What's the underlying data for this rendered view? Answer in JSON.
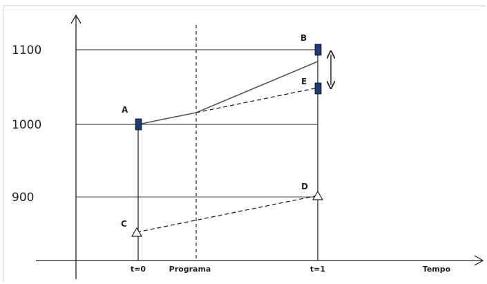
{
  "chart_data": {
    "type": "diagram",
    "y_ticks": [
      "1100",
      "1000",
      "900"
    ],
    "x_ticks": [
      "t=0",
      "Programa",
      "t=1"
    ],
    "x_axis_label": "Tempo",
    "points": [
      {
        "label": "A",
        "marker": "square"
      },
      {
        "label": "B",
        "marker": "square"
      },
      {
        "label": "E",
        "marker": "square"
      },
      {
        "label": "C",
        "marker": "triangle"
      },
      {
        "label": "D",
        "marker": "triangle"
      }
    ],
    "colors": {
      "marker_fill": "#1f3a7a",
      "line": "#222222",
      "solid_path": "#555555",
      "triangle_fill": "#ffffff",
      "frame": "#c9c9c9"
    }
  }
}
